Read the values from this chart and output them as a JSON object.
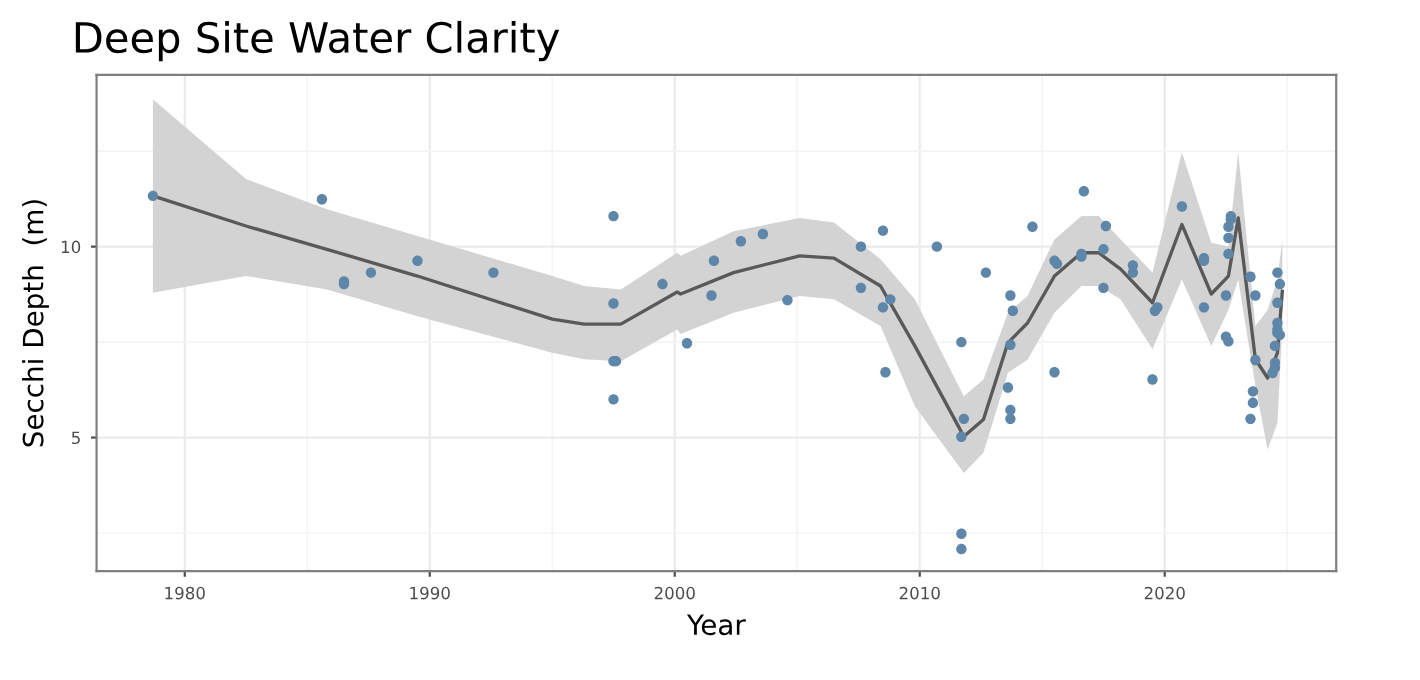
{
  "chart_data": {
    "type": "scatter",
    "title": "Deep Site Water Clarity",
    "xlabel": "Year",
    "ylabel": "Secchi Depth  (m)",
    "xlim": [
      1976.4,
      2027
    ],
    "ylim": [
      1.5,
      14.5
    ],
    "xticks": [
      1980,
      1990,
      2000,
      2010,
      2020
    ],
    "yticks": [
      5,
      10
    ],
    "grid": true,
    "legend": false,
    "marker": "circle",
    "series": [
      {
        "color": "#5e86a8",
        "x": [
          1978.7,
          1985.6,
          1986.5,
          1986.5,
          1987.6,
          1989.5,
          1992.6,
          1997.5,
          1997.5,
          1997.5,
          1997.6,
          1997.5,
          1999.5,
          2000.5,
          2001.5,
          2001.6,
          2002.7,
          2003.6,
          2004.6,
          2007.6,
          2007.6,
          2008.5,
          2008.5,
          2008.8,
          2008.6,
          2010.7,
          2011.7,
          2011.8,
          2011.7,
          2011.7,
          2011.7,
          2012.7,
          2013.6,
          2013.7,
          2013.8,
          2013.7,
          2013.7,
          2013.7,
          2014.6,
          2015.5,
          2015.5,
          2015.6,
          2016.6,
          2016.6,
          2016.7,
          2017.5,
          2017.5,
          2017.6,
          2018.7,
          2018.7,
          2019.5,
          2019.6,
          2019.7,
          2020.7,
          2021.6,
          2021.6,
          2021.6,
          2022.5,
          2022.5,
          2022.6,
          2022.6,
          2022.6,
          2022.6,
          2022.7,
          2022.7,
          2023.5,
          2023.7,
          2023.7,
          2023.6,
          2023.6,
          2023.5,
          2024.4,
          2024.5,
          2024.5,
          2024.6,
          2024.6,
          2024.6,
          2024.6,
          2024.7,
          2024.5,
          2024.6,
          2024.7
        ],
        "values": [
          11.33,
          11.24,
          9.09,
          9.02,
          9.32,
          9.63,
          9.32,
          10.8,
          8.51,
          7.0,
          7.0,
          6.0,
          9.02,
          7.47,
          8.72,
          9.63,
          10.14,
          10.33,
          8.6,
          10.0,
          8.92,
          10.42,
          8.41,
          8.62,
          6.71,
          10.0,
          7.5,
          5.49,
          5.02,
          2.48,
          2.08,
          9.32,
          6.31,
          8.72,
          8.32,
          7.43,
          5.72,
          5.49,
          10.52,
          6.71,
          9.63,
          9.55,
          9.74,
          9.81,
          11.45,
          8.92,
          9.93,
          10.54,
          9.51,
          9.32,
          6.52,
          8.32,
          8.41,
          11.05,
          9.7,
          9.63,
          8.41,
          8.72,
          7.64,
          7.52,
          9.81,
          10.23,
          10.52,
          10.72,
          10.8,
          9.21,
          8.72,
          7.03,
          6.21,
          5.91,
          5.49,
          6.69,
          6.96,
          7.4,
          7.74,
          8.0,
          8.53,
          9.32,
          9.02,
          6.83,
          7.83,
          7.69
        ]
      },
      {
        "type": "line",
        "color": "#595959",
        "marker": "none",
        "x": [
          1978.7,
          1982.5,
          1985.8,
          1989.5,
          1995,
          1996.3,
          1997.8,
          2000.1,
          2000.24,
          2002.4,
          2005.1,
          2006.5,
          2008.4,
          2009.8,
          2011.8,
          2012.6,
          2013.6,
          2014.4,
          2015.5,
          2016.6,
          2017.3,
          2018.2,
          2019.5,
          2020.7,
          2021.9,
          2022.6,
          2023.0,
          2023.7,
          2024.2,
          2024.6,
          2024.8
        ],
        "values": [
          11.33,
          10.54,
          9.93,
          9.23,
          8.1,
          7.97,
          7.97,
          8.81,
          8.76,
          9.32,
          9.76,
          9.7,
          8.97,
          7.4,
          5.03,
          5.47,
          7.48,
          8.0,
          9.23,
          9.84,
          9.84,
          9.41,
          8.53,
          10.58,
          8.76,
          9.23,
          10.75,
          7.05,
          6.56,
          7.22,
          8.83
        ],
        "upper": [
          13.86,
          11.77,
          10.98,
          10.28,
          9.23,
          8.97,
          8.88,
          9.84,
          9.76,
          10.4,
          10.75,
          10.63,
          9.67,
          8.62,
          6.08,
          6.52,
          8.27,
          8.71,
          10.19,
          10.8,
          10.8,
          10.19,
          9.32,
          12.47,
          10.1,
          10.0,
          12.47,
          7.92,
          8.34,
          9.14,
          10.19
        ],
        "lower": [
          8.79,
          9.23,
          8.88,
          8.18,
          7.22,
          7.05,
          7.0,
          7.83,
          7.71,
          8.27,
          8.71,
          8.62,
          7.92,
          5.82,
          4.07,
          4.6,
          6.7,
          7.04,
          8.27,
          8.97,
          8.97,
          8.62,
          7.31,
          9.14,
          7.4,
          8.34,
          9.14,
          6.35,
          4.69,
          5.38,
          7.92
        ]
      }
    ]
  }
}
